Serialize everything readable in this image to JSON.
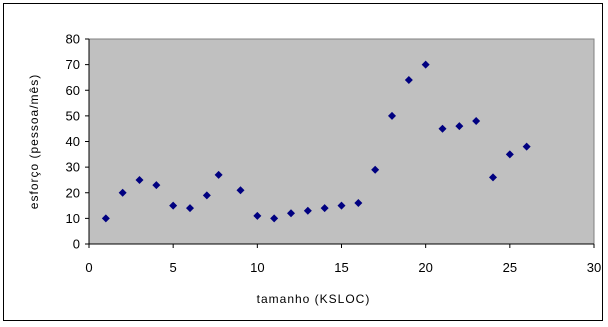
{
  "colors": {
    "plot_background": "#c0c0c0",
    "marker": "#000080",
    "axis": "#000000"
  },
  "chart_data": {
    "type": "scatter",
    "xlabel": "tamanho (KSLOC)",
    "ylabel": "esforço (pessoa/mês)",
    "xlim": [
      0,
      30
    ],
    "ylim": [
      0,
      80
    ],
    "xticks": [
      0,
      5,
      10,
      15,
      20,
      25,
      30
    ],
    "yticks": [
      0,
      10,
      20,
      30,
      40,
      50,
      60,
      70,
      80
    ],
    "grid": false,
    "legend": "none",
    "marker": "diamond",
    "x": [
      1,
      2,
      3,
      4,
      5,
      6,
      7,
      7.7,
      9,
      10,
      11,
      12,
      13,
      14,
      15,
      16,
      17,
      18,
      19,
      20,
      21,
      22,
      23,
      24,
      25,
      26
    ],
    "y": [
      10,
      20,
      25,
      23,
      15,
      14,
      19,
      27,
      21,
      11,
      10,
      12,
      13,
      14,
      15,
      16,
      29,
      50,
      64,
      70,
      45,
      46,
      48,
      26,
      35,
      38
    ]
  }
}
